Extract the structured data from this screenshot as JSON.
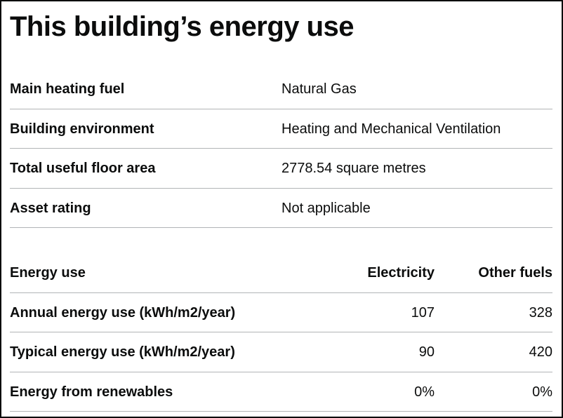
{
  "page": {
    "title": "This building’s energy use"
  },
  "summary": {
    "rows": [
      {
        "label": "Main heating fuel",
        "value": "Natural Gas"
      },
      {
        "label": "Building environment",
        "value": "Heating and Mechanical Ventilation"
      },
      {
        "label": "Total useful floor area",
        "value": "2778.54 square metres"
      },
      {
        "label": "Asset rating",
        "value": "Not applicable"
      }
    ]
  },
  "energy_table": {
    "headers": [
      "Energy use",
      "Electricity",
      "Other fuels"
    ],
    "rows": [
      {
        "label": "Annual energy use (kWh/m2/year)",
        "electricity": "107",
        "other_fuels": "328"
      },
      {
        "label": "Typical energy use (kWh/m2/year)",
        "electricity": "90",
        "other_fuels": "420"
      },
      {
        "label": "Energy from renewables",
        "electricity": "0%",
        "other_fuels": "0%"
      }
    ]
  }
}
